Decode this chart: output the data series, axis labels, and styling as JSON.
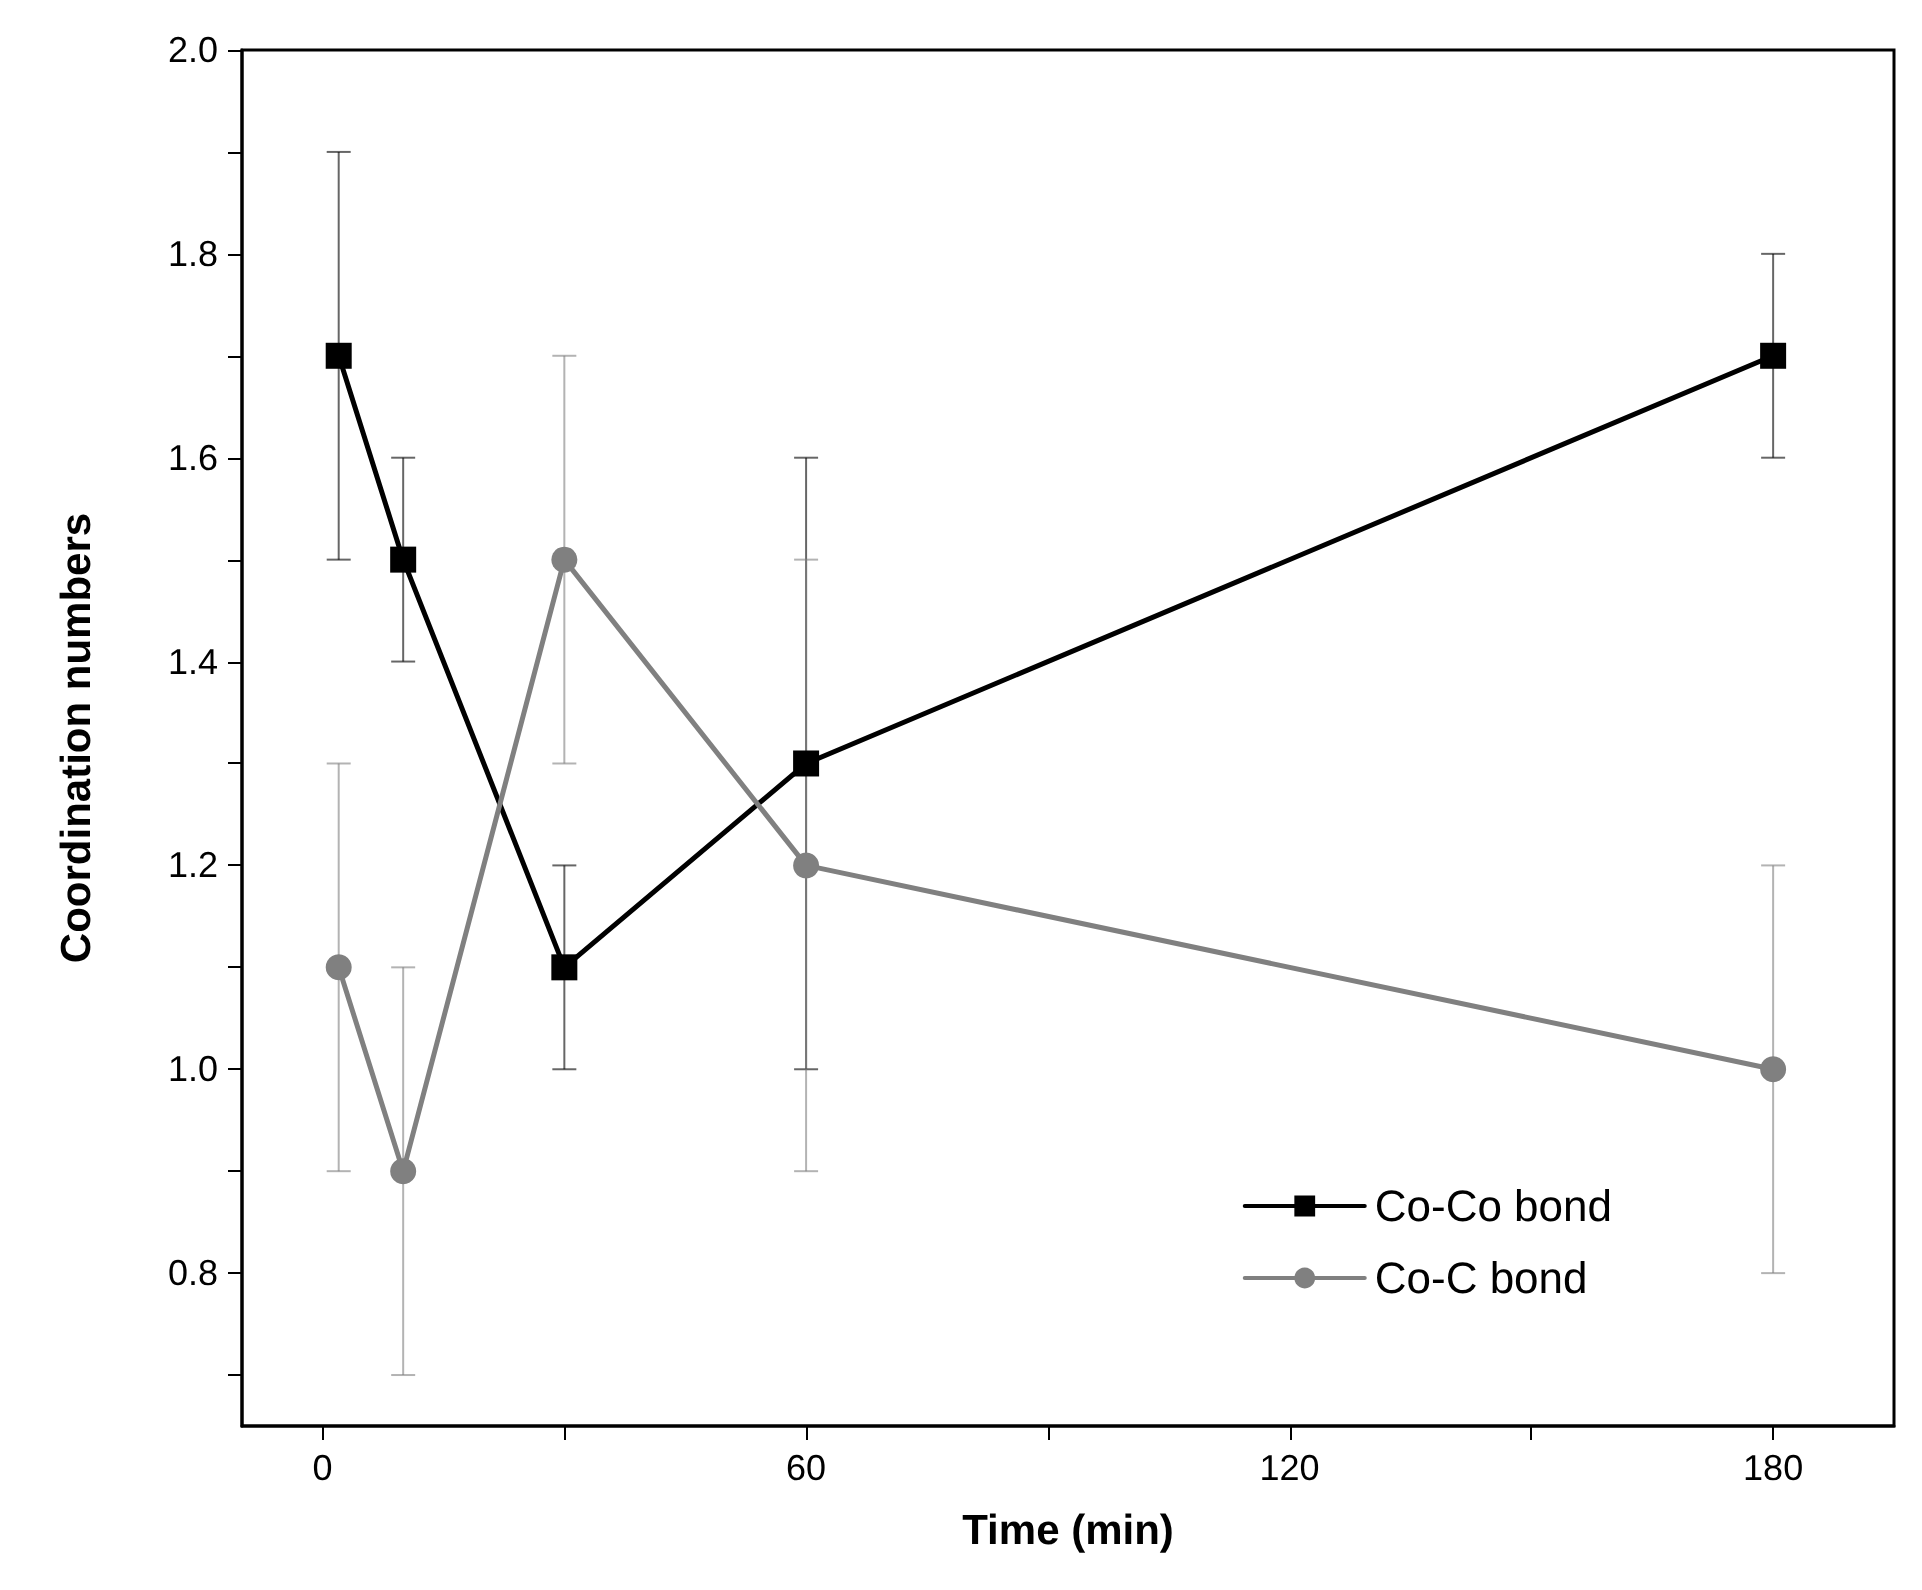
{
  "chart_data": {
    "type": "line",
    "xlabel": "Time (min)",
    "ylabel": "Coordination numbers",
    "x": [
      2,
      10,
      30,
      60,
      180
    ],
    "xlim": [
      -10,
      195
    ],
    "xticks": [
      0,
      {
        "value": 30,
        "label": null
      },
      60,
      {
        "value": 90,
        "label": null
      },
      120,
      {
        "value": 150,
        "label": null
      },
      180
    ],
    "ylim": [
      0.65,
      2.0
    ],
    "yticks": [
      {
        "value": 0.7,
        "label": null
      },
      0.8,
      {
        "value": 0.9,
        "label": null
      },
      {
        "value": 1,
        "label": "1.0"
      },
      {
        "value": 1.1,
        "label": null
      },
      1.2,
      {
        "value": 1.3,
        "label": null
      },
      1.4,
      {
        "value": 1.5,
        "label": null
      },
      1.6,
      {
        "value": 1.7,
        "label": null
      },
      1.8,
      {
        "value": 1.9,
        "label": null
      },
      {
        "value": 2,
        "label": "2.0"
      }
    ],
    "series": [
      {
        "name": "Co-Co bond",
        "color": "#000000",
        "marker": "square",
        "values": [
          1.7,
          1.5,
          1.1,
          1.3,
          1.7
        ],
        "errors": [
          0.2,
          0.1,
          0.1,
          0.3,
          0.1
        ]
      },
      {
        "name": "Co-C bond",
        "color": "#808080",
        "marker": "circle",
        "values": [
          1.1,
          0.9,
          1.5,
          1.2,
          1.0
        ],
        "errors": [
          0.2,
          0.2,
          0.2,
          0.3,
          0.2
        ]
      }
    ],
    "legend": "bottom right",
    "grid": false,
    "line_style": "solid"
  }
}
